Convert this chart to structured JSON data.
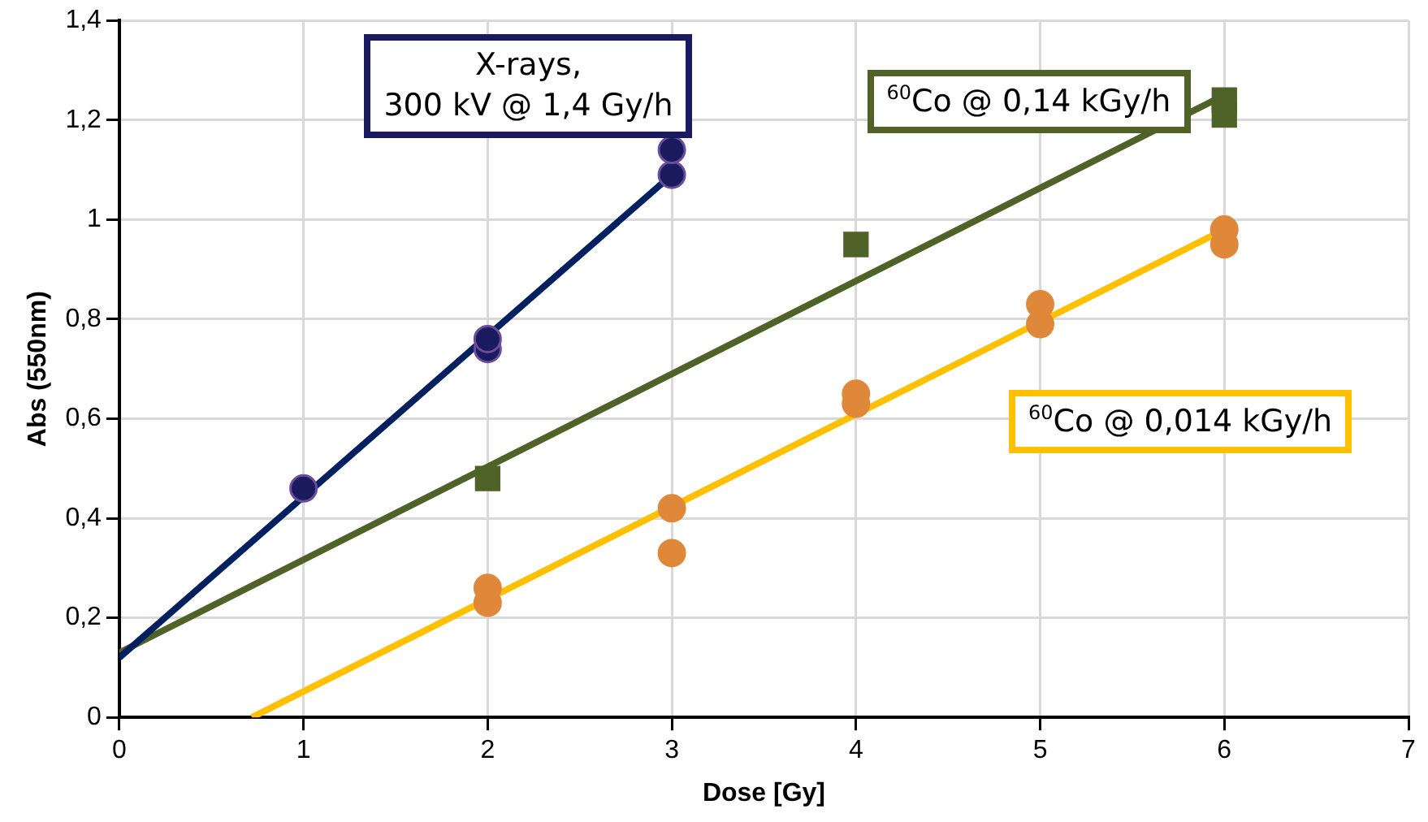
{
  "chart_data": {
    "type": "scatter",
    "xlabel": "Dose [Gy]",
    "ylabel": "Abs (550nm)",
    "xlim": [
      0,
      7
    ],
    "xticks": [
      0,
      1,
      2,
      3,
      4,
      5,
      6,
      7
    ],
    "ylim": [
      0,
      1.4
    ],
    "yticks": [
      0,
      {
        "value": 0.2,
        "label": "0,2"
      },
      {
        "value": 0.4,
        "label": "0,4"
      },
      {
        "value": 0.6,
        "label": "0,6"
      },
      {
        "value": 0.8,
        "label": "0,8"
      },
      1,
      {
        "value": 1.2,
        "label": "1,2"
      },
      {
        "value": 1.4,
        "label": "1,4"
      }
    ],
    "grid": true,
    "legend": false,
    "series": [
      {
        "name": "X-rays,\n300 kV @ 1,4 Gy/h",
        "marker": "circle",
        "color": "#1a1a5e",
        "x": [
          1,
          2,
          2,
          3,
          3
        ],
        "values": [
          0.46,
          0.74,
          0.76,
          1.09,
          1.14
        ]
      },
      {
        "name": "$^{60}$Co @ 0,14 kGy/h",
        "marker": "square",
        "color": "#4f6228",
        "x": [
          2,
          4,
          6,
          6
        ],
        "values": [
          0.48,
          0.95,
          1.21,
          1.24
        ]
      },
      {
        "name": "$^{60}$Co @ 0,014 kGy/h",
        "marker": "circle",
        "color": "#e0883a",
        "x": [
          2,
          2,
          3,
          3,
          4,
          4,
          5,
          5,
          6,
          6
        ],
        "values": [
          0.23,
          0.26,
          0.42,
          0.33,
          0.63,
          0.65,
          0.79,
          0.83,
          0.95,
          0.98
        ]
      },
      {
        "type": "line",
        "marker": "none",
        "color": "#002060",
        "x": [
          0,
          3
        ],
        "values": [
          0.12,
          1.09
        ]
      },
      {
        "type": "line",
        "marker": "none",
        "color": "#4f6228",
        "x": [
          0,
          6
        ],
        "values": [
          0.13,
          1.25
        ]
      },
      {
        "type": "line",
        "marker": "none",
        "color": "#ffc000",
        "x": [
          0.72,
          6
        ],
        "values": [
          0,
          0.98
        ]
      }
    ]
  }
}
